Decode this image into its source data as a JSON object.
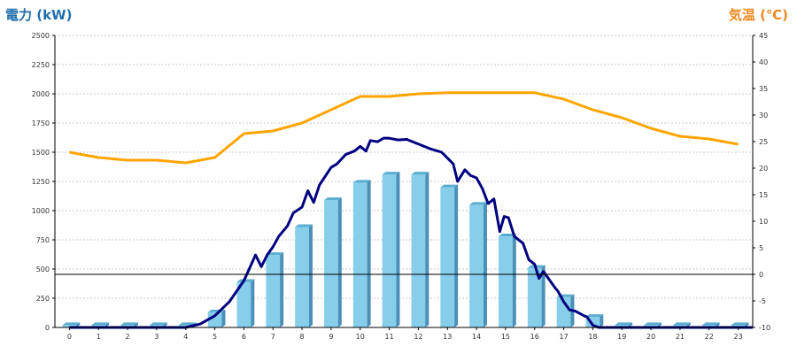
{
  "titles": {
    "left": "電力 (kW)",
    "right": "気温 (℃)"
  },
  "colors": {
    "bar_front": "#87ceeb",
    "bar_top": "#5aaed0",
    "bar_side": "#4a90b8",
    "power_line": "#000080",
    "temperature_line": "#ffa500",
    "grid": "#c8c8c8",
    "axis": "#000000"
  },
  "chart_data": {
    "type": "bar+line",
    "x": [
      0,
      1,
      2,
      3,
      4,
      5,
      6,
      7,
      8,
      9,
      10,
      11,
      12,
      13,
      14,
      15,
      16,
      17,
      18,
      19,
      20,
      21,
      22,
      23
    ],
    "left_axis": {
      "title": "電力 (kW)",
      "range": [
        0,
        2500
      ],
      "ticks": [
        0,
        250,
        500,
        750,
        1000,
        1250,
        1500,
        1750,
        2000,
        2250,
        2500
      ]
    },
    "right_axis": {
      "title": "気温 (℃)",
      "range": [
        -10,
        45
      ],
      "ticks": [
        -10,
        -5,
        0,
        5,
        10,
        15,
        20,
        25,
        30,
        35,
        40,
        45
      ]
    },
    "grid": true,
    "bars": {
      "axis": "left",
      "values": [
        20,
        20,
        20,
        20,
        20,
        130,
        390,
        620,
        860,
        1090,
        1240,
        1310,
        1310,
        1200,
        1050,
        780,
        510,
        260,
        90,
        20,
        20,
        20,
        20,
        20
      ]
    },
    "power_line": {
      "axis": "left",
      "points": [
        [
          0,
          0
        ],
        [
          4,
          0
        ],
        [
          4.5,
          30
        ],
        [
          5,
          100
        ],
        [
          5.5,
          220
        ],
        [
          6,
          400
        ],
        [
          6.4,
          620
        ],
        [
          6.6,
          520
        ],
        [
          6.8,
          620
        ],
        [
          7,
          690
        ],
        [
          7.2,
          780
        ],
        [
          7.5,
          870
        ],
        [
          7.7,
          980
        ],
        [
          8,
          1030
        ],
        [
          8.2,
          1170
        ],
        [
          8.4,
          1070
        ],
        [
          8.6,
          1220
        ],
        [
          9,
          1370
        ],
        [
          9.2,
          1400
        ],
        [
          9.5,
          1480
        ],
        [
          9.8,
          1510
        ],
        [
          10,
          1550
        ],
        [
          10.2,
          1510
        ],
        [
          10.35,
          1600
        ],
        [
          10.6,
          1590
        ],
        [
          10.8,
          1620
        ],
        [
          11,
          1620
        ],
        [
          11.3,
          1605
        ],
        [
          11.6,
          1610
        ],
        [
          12,
          1570
        ],
        [
          12.4,
          1530
        ],
        [
          12.8,
          1500
        ],
        [
          13,
          1450
        ],
        [
          13.2,
          1400
        ],
        [
          13.35,
          1250
        ],
        [
          13.6,
          1350
        ],
        [
          13.8,
          1300
        ],
        [
          14,
          1280
        ],
        [
          14.2,
          1190
        ],
        [
          14.4,
          1060
        ],
        [
          14.6,
          1100
        ],
        [
          14.8,
          820
        ],
        [
          14.95,
          950
        ],
        [
          15.1,
          940
        ],
        [
          15.3,
          780
        ],
        [
          15.6,
          720
        ],
        [
          15.8,
          580
        ],
        [
          16,
          540
        ],
        [
          16.15,
          420
        ],
        [
          16.3,
          480
        ],
        [
          16.5,
          410
        ],
        [
          16.7,
          340
        ],
        [
          16.8,
          310
        ],
        [
          17,
          220
        ],
        [
          17.2,
          150
        ],
        [
          17.4,
          140
        ],
        [
          17.7,
          100
        ],
        [
          17.8,
          90
        ],
        [
          18,
          20
        ],
        [
          18.2,
          0
        ],
        [
          23.5,
          0
        ]
      ]
    },
    "temperature_line": {
      "axis": "right",
      "values": [
        23,
        22,
        21.5,
        21.5,
        21,
        22,
        26.5,
        27,
        28.5,
        31,
        33.5,
        33.5,
        34,
        34.2,
        34.2,
        34.2,
        34.2,
        33,
        31,
        29.5,
        27.5,
        26,
        25.5,
        24.5
      ]
    }
  }
}
